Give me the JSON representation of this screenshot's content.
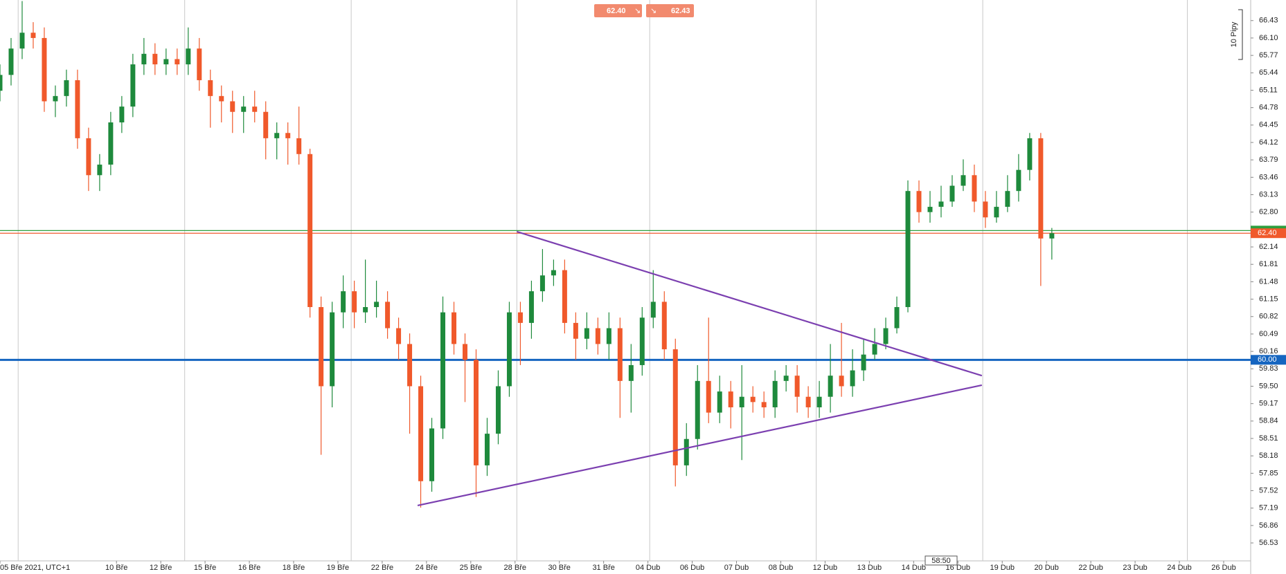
{
  "chart_data": {
    "type": "candlestick",
    "x": [
      0,
      0.25,
      0.5,
      0.75,
      1,
      1.25,
      1.5,
      1.75,
      2,
      2.25,
      2.5,
      2.75,
      3,
      3.25,
      3.5,
      3.75,
      4,
      4.25,
      4.5,
      4.75,
      5,
      5.25,
      5.5,
      5.75,
      6,
      6.25,
      6.5,
      6.75,
      7,
      7.25,
      7.5,
      7.75,
      8,
      8.25,
      8.5,
      8.75,
      9,
      9.25,
      9.5,
      9.75,
      10,
      10.25,
      10.5,
      10.75,
      11,
      11.25,
      11.5,
      11.75,
      12,
      12.25,
      12.5,
      12.75,
      13,
      13.25,
      13.5,
      13.75,
      14,
      14.25,
      14.5,
      14.75,
      15,
      15.25,
      15.5,
      15.75,
      16,
      16.25,
      16.5,
      16.75,
      17,
      17.25,
      17.5,
      17.75,
      18,
      18.25,
      18.5,
      18.75,
      19,
      19.25,
      19.5,
      19.75,
      20,
      20.25,
      20.5,
      20.75,
      21,
      21.25,
      21.5,
      21.75,
      22,
      22.25,
      22.5,
      22.75,
      23,
      23.25,
      23.5,
      23.75
    ],
    "open": [
      65.1,
      65.4,
      65.9,
      66.2,
      66.1,
      64.9,
      65.0,
      65.3,
      64.2,
      63.5,
      63.7,
      64.5,
      64.8,
      65.6,
      65.8,
      65.6,
      65.7,
      65.6,
      65.9,
      65.3,
      65.0,
      64.9,
      64.7,
      64.8,
      64.7,
      64.2,
      64.3,
      64.2,
      63.9,
      61.0,
      59.5,
      60.9,
      61.3,
      60.9,
      61.0,
      61.1,
      60.6,
      60.3,
      59.5,
      57.7,
      58.7,
      60.9,
      60.3,
      60.0,
      58.0,
      58.6,
      59.5,
      60.9,
      60.7,
      61.3,
      61.6,
      61.7,
      60.7,
      60.4,
      60.6,
      60.3,
      60.6,
      59.6,
      59.9,
      60.8,
      61.1,
      60.2,
      58.0,
      58.5,
      59.6,
      59.0,
      59.4,
      59.1,
      59.3,
      59.2,
      59.1,
      59.6,
      59.7,
      59.3,
      59.1,
      59.3,
      59.7,
      59.5,
      59.8,
      60.1,
      60.3,
      60.6,
      61.0,
      63.2,
      62.8,
      62.9,
      63.0,
      63.3,
      63.5,
      63.0,
      62.7,
      62.9,
      63.2,
      63.6,
      64.2,
      62.3
    ],
    "high": [
      65.6,
      66.1,
      66.8,
      66.4,
      66.3,
      65.2,
      65.5,
      65.5,
      64.4,
      63.9,
      64.7,
      65.0,
      65.8,
      66.1,
      66.0,
      65.9,
      65.9,
      66.3,
      66.1,
      65.5,
      65.2,
      65.1,
      65.0,
      65.1,
      64.9,
      64.5,
      64.5,
      64.8,
      64.0,
      61.2,
      61.1,
      61.6,
      61.5,
      61.9,
      61.5,
      61.3,
      60.8,
      60.5,
      59.7,
      58.9,
      61.2,
      61.1,
      60.5,
      60.2,
      58.9,
      59.8,
      61.1,
      61.1,
      61.5,
      62.1,
      61.9,
      61.9,
      60.9,
      60.9,
      60.8,
      60.9,
      60.8,
      60.3,
      61.0,
      61.7,
      61.3,
      60.4,
      58.8,
      59.9,
      60.8,
      59.7,
      59.6,
      59.9,
      59.5,
      59.4,
      59.8,
      59.9,
      59.9,
      59.5,
      59.6,
      60.3,
      60.7,
      60.2,
      60.4,
      60.6,
      60.8,
      61.2,
      63.4,
      63.4,
      63.2,
      63.3,
      63.5,
      63.8,
      63.7,
      63.2,
      63.2,
      63.5,
      63.9,
      64.3,
      64.3,
      62.5
    ],
    "low": [
      64.9,
      65.2,
      65.7,
      65.9,
      64.7,
      64.6,
      64.8,
      64.0,
      63.2,
      63.2,
      63.5,
      64.3,
      64.6,
      65.4,
      65.4,
      65.4,
      65.4,
      65.4,
      65.1,
      64.4,
      64.5,
      64.3,
      64.3,
      64.5,
      63.8,
      63.8,
      63.7,
      63.7,
      60.8,
      58.2,
      59.1,
      60.6,
      60.6,
      60.7,
      60.8,
      60.4,
      60.0,
      58.6,
      57.2,
      57.5,
      58.5,
      60.1,
      59.2,
      57.4,
      57.8,
      58.4,
      59.3,
      59.9,
      60.4,
      61.1,
      61.4,
      60.5,
      60.0,
      60.2,
      60.1,
      60.0,
      58.9,
      59.0,
      59.7,
      60.6,
      60.0,
      57.6,
      57.8,
      58.3,
      58.8,
      58.8,
      58.7,
      58.1,
      59.0,
      58.9,
      58.9,
      59.4,
      59.0,
      58.9,
      58.9,
      59.0,
      59.3,
      59.3,
      59.6,
      60.0,
      60.2,
      60.5,
      60.9,
      62.6,
      62.6,
      62.7,
      62.9,
      63.2,
      62.8,
      62.5,
      62.6,
      62.8,
      63.0,
      63.4,
      61.4,
      61.9
    ],
    "close": [
      65.4,
      65.9,
      66.2,
      66.1,
      64.9,
      65.0,
      65.3,
      64.2,
      63.5,
      63.7,
      64.5,
      64.8,
      65.6,
      65.8,
      65.6,
      65.7,
      65.6,
      65.9,
      65.3,
      65.0,
      64.9,
      64.7,
      64.8,
      64.7,
      64.2,
      64.3,
      64.2,
      63.9,
      61.0,
      59.5,
      60.9,
      61.3,
      60.9,
      61.0,
      61.1,
      60.6,
      60.3,
      59.5,
      57.7,
      58.7,
      60.9,
      60.3,
      60.0,
      58.0,
      58.6,
      59.5,
      60.9,
      60.7,
      61.3,
      61.6,
      61.7,
      60.7,
      60.4,
      60.6,
      60.3,
      60.6,
      59.6,
      59.9,
      60.8,
      61.1,
      60.2,
      58.0,
      58.5,
      59.6,
      59.0,
      59.4,
      59.1,
      59.3,
      59.2,
      59.1,
      59.6,
      59.7,
      59.3,
      59.1,
      59.3,
      59.7,
      59.5,
      59.8,
      60.1,
      60.3,
      60.6,
      61.0,
      63.2,
      62.8,
      62.9,
      63.0,
      63.3,
      63.5,
      63.0,
      62.7,
      62.9,
      63.2,
      63.6,
      64.2,
      62.3,
      62.4
    ],
    "up_color": "#1e8a3c",
    "down_color": "#f0592b",
    "ylim": [
      56.19,
      66.82
    ],
    "yticks": [
      66.43,
      {
        "value": 66.1,
        "label": "66.10"
      },
      65.77,
      65.44,
      65.11,
      64.78,
      64.45,
      64.12,
      63.79,
      63.46,
      63.13,
      {
        "value": 62.8,
        "label": "62.80"
      },
      62.14,
      61.81,
      61.48,
      61.15,
      60.82,
      60.49,
      60.16,
      59.83,
      {
        "value": 59.5,
        "label": "59.50"
      },
      59.17,
      58.84,
      58.51,
      58.18,
      57.85,
      57.52,
      57.19,
      56.86,
      56.53
    ],
    "xlim": [
      0,
      28.24
    ],
    "xticks": [
      {
        "value": 0,
        "label": "05 Bře 2021, UTC+1"
      },
      {
        "value": 2.63,
        "label": "10 Bře"
      },
      {
        "value": 3.63,
        "label": "12 Bře"
      },
      {
        "value": 4.63,
        "label": "15 Bře"
      },
      {
        "value": 5.63,
        "label": "16 Bře"
      },
      {
        "value": 6.63,
        "label": "18 Bře"
      },
      {
        "value": 7.63,
        "label": "19 Bře"
      },
      {
        "value": 8.63,
        "label": "22 Bře"
      },
      {
        "value": 9.63,
        "label": "24 Bře"
      },
      {
        "value": 10.63,
        "label": "25 Bře"
      },
      {
        "value": 11.63,
        "label": "28 Bře"
      },
      {
        "value": 12.63,
        "label": "30 Bře"
      },
      {
        "value": 13.63,
        "label": "31 Bře"
      },
      {
        "value": 14.63,
        "label": "04 Dub"
      },
      {
        "value": 15.63,
        "label": "06 Dub"
      },
      {
        "value": 16.63,
        "label": "07 Dub"
      },
      {
        "value": 17.63,
        "label": "08 Dub"
      },
      {
        "value": 18.63,
        "label": "12 Dub"
      },
      {
        "value": 19.63,
        "label": "13 Dub"
      },
      {
        "value": 20.63,
        "label": "14 Dub"
      },
      {
        "value": 21.63,
        "label": "16 Dub"
      },
      {
        "value": 22.63,
        "label": "19 Dub"
      },
      {
        "value": 23.63,
        "label": "20 Dub"
      },
      {
        "value": 24.63,
        "label": "22 Dub"
      },
      {
        "value": 25.63,
        "label": "23 Dub"
      },
      {
        "value": 26.63,
        "label": "24 Dub"
      },
      {
        "value": 27.63,
        "label": "26 Dub"
      }
    ],
    "xgrid": [
      0.41,
      4.17,
      7.93,
      11.67,
      14.67,
      18.43,
      22.19,
      26.81
    ],
    "hlines": [
      {
        "value": 62.45,
        "color": "#2e9e3e"
      },
      {
        "value": 62.4,
        "label": "62.40",
        "color": "#f0592b"
      },
      {
        "value": 60,
        "label": "60.00",
        "color": "#1565c0"
      }
    ],
    "trendlines": [
      {
        "x": [
          11.67,
          22.17
        ],
        "y": [
          62.43,
          59.7
        ],
        "color": "#7b3fb0"
      },
      {
        "x": [
          9.43,
          22.17
        ],
        "y": [
          57.24,
          59.52
        ],
        "color": "#7b3fb0"
      }
    ],
    "quotes": [
      {
        "value": 62.4,
        "label": "62.40"
      },
      {
        "value": 62.43,
        "label": "62.43"
      }
    ],
    "scale_label": "10 Pipy",
    "countdown": "58:50"
  }
}
